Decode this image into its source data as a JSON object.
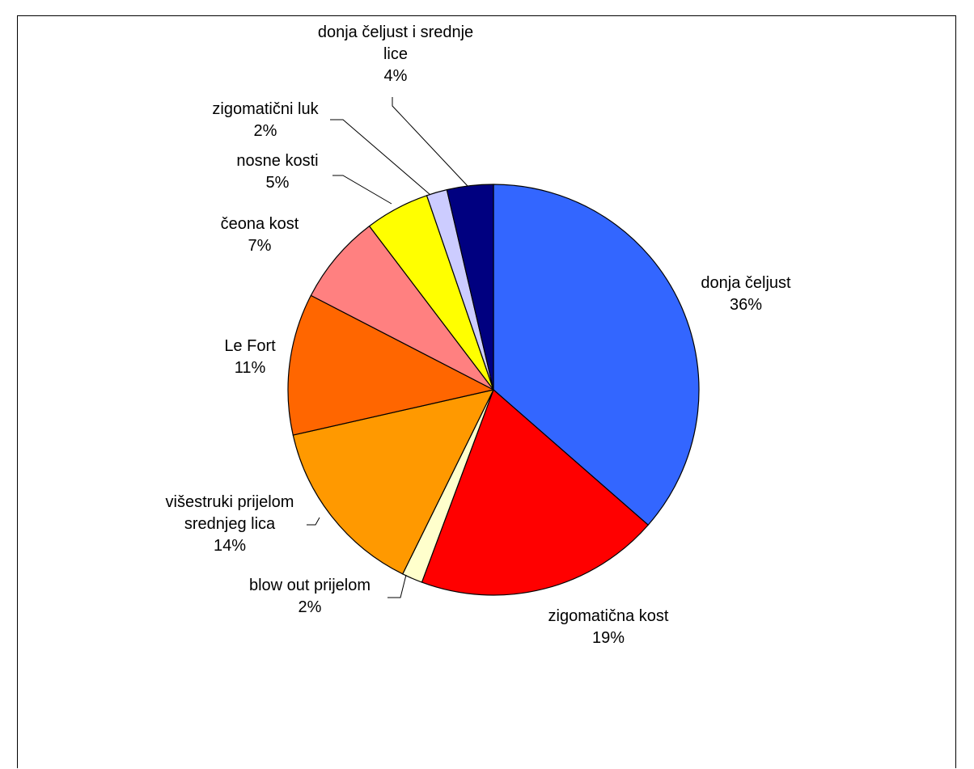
{
  "chart_data": {
    "type": "pie",
    "title": "",
    "slices": [
      {
        "label_lines": [
          "donja čeljust"
        ],
        "percent_label": "36%",
        "value": 36,
        "color": "#3366FF"
      },
      {
        "label_lines": [
          "zigomatična kost"
        ],
        "percent_label": "19%",
        "value": 19,
        "color": "#FF0000"
      },
      {
        "label_lines": [
          "blow out prijelom"
        ],
        "percent_label": "2%",
        "value": 1.6,
        "color": "#FFFFCC"
      },
      {
        "label_lines": [
          "višestruki prijelom",
          "srednjeg lica"
        ],
        "percent_label": "14%",
        "value": 14,
        "color": "#FF9900"
      },
      {
        "label_lines": [
          "Le Fort"
        ],
        "percent_label": "11%",
        "value": 11,
        "color": "#FF6600"
      },
      {
        "label_lines": [
          "čeona kost"
        ],
        "percent_label": "7%",
        "value": 7,
        "color": "#FF8080"
      },
      {
        "label_lines": [
          "nosne kosti"
        ],
        "percent_label": "5%",
        "value": 5,
        "color": "#FFFF00"
      },
      {
        "label_lines": [
          "zigomatični luk"
        ],
        "percent_label": "2%",
        "value": 1.6,
        "color": "#CCCCFF"
      },
      {
        "label_lines": [
          "donja čeljust i srednje",
          "lice"
        ],
        "percent_label": "4%",
        "value": 3.6,
        "color": "#000080"
      }
    ],
    "start": "12 o'clock",
    "direction": "clockwise",
    "legend": "none"
  }
}
